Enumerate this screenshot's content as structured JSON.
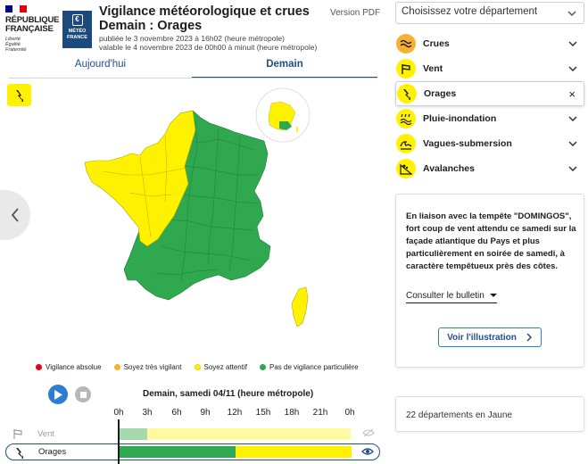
{
  "header": {
    "republic_lines": [
      "RÉPUBLIQUE",
      "FRANÇAISE"
    ],
    "motto": [
      "Liberté",
      "Égalité",
      "Fraternité"
    ],
    "meteo_logo_lines": [
      "MÉTÉO",
      "FRANCE"
    ],
    "title_line1": "Vigilance météorologique et crues",
    "title_line2": "Demain : Orages",
    "published": "publiée le 3 novembre 2023 à 16h02 (heure métropole)",
    "valid": "valable le 4 novembre 2023 de 00h00 à minuit (heure métropole)",
    "version_pdf": "Version PDF"
  },
  "tabs": [
    {
      "label": "Aujourd'hui",
      "active": false
    },
    {
      "label": "Demain",
      "active": true
    }
  ],
  "legend": [
    {
      "label": "Vigilance absolue",
      "color": "#e1001a"
    },
    {
      "label": "Soyez très vigilant",
      "color": "#f7b034"
    },
    {
      "label": "Soyez attentif",
      "color": "#fff200"
    },
    {
      "label": "Pas de vigilance particulière",
      "color": "#2fa84f"
    }
  ],
  "timeline": {
    "title": "Demain, samedi 04/11 (heure métropole)",
    "hours": [
      "0h",
      "3h",
      "6h",
      "9h",
      "12h",
      "15h",
      "18h",
      "21h",
      "0h"
    ],
    "rows": [
      {
        "label": "Vent",
        "icon": "wind-icon",
        "segments": [
          {
            "hours": 3,
            "level": "green-light"
          },
          {
            "hours": 21,
            "level": "yellow-light"
          }
        ]
      },
      {
        "label": "Orages",
        "icon": "storm-icon",
        "segments": [
          {
            "hours": 12,
            "level": "green"
          },
          {
            "hours": 12,
            "level": "yellow"
          }
        ]
      }
    ]
  },
  "department_select": {
    "placeholder": "Choisissez votre département"
  },
  "phenomena": [
    {
      "label": "Crues",
      "icon": "flood-icon",
      "color": "#f7b034",
      "active": false
    },
    {
      "label": "Vent",
      "icon": "wind-icon",
      "color": "#fff200",
      "active": false
    },
    {
      "label": "Orages",
      "icon": "storm-icon",
      "color": "#fff200",
      "active": true
    },
    {
      "label": "Pluie-inondation",
      "icon": "rain-flood-icon",
      "color": "#fff200",
      "active": false
    },
    {
      "label": "Vagues-submersion",
      "icon": "waves-icon",
      "color": "#fff200",
      "active": false
    },
    {
      "label": "Avalanches",
      "icon": "avalanche-icon",
      "color": "#fff200",
      "active": false
    }
  ],
  "info": {
    "text": "En liaison avec la tempête \"DOMINGOS\", fort coup de vent attendu ce samedi sur la façade atlantique du Pays et plus particulièrement en soirée de samedi, à caractère tempêtueux près des côtes.",
    "bulletin_label": "Consulter le bulletin",
    "illustration_label": "Voir l'illustration"
  },
  "count_text": "22 départements en Jaune",
  "colors": {
    "primary_blue": "#1f4e8c",
    "alert_yellow": "#fff200",
    "no_alert_green": "#2fa84f"
  }
}
